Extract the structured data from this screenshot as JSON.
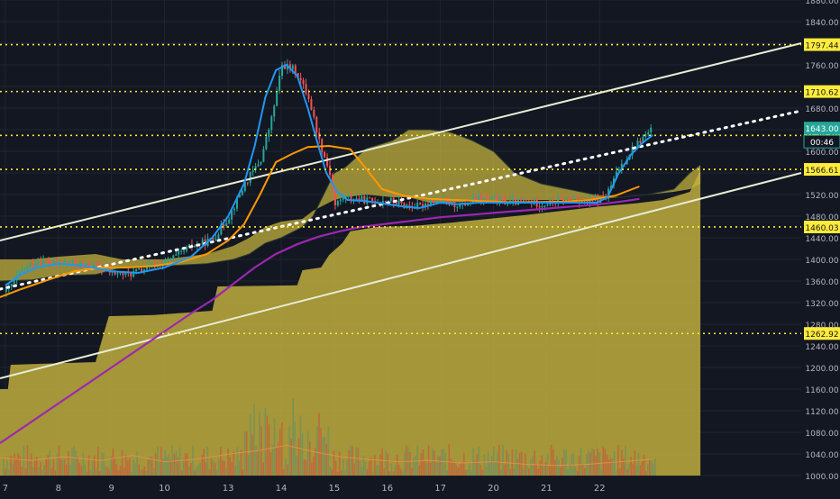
{
  "colors": {
    "background": "#131722",
    "grid": "#1f2533",
    "axis_text": "#b2b5be",
    "level_line": "#ffeb3b",
    "label_bg": "#ffeb3b",
    "label_text": "#131722",
    "price_tag_bg": "#26a69a",
    "timer_bg": "#131722",
    "ema_fast": "#2196f3",
    "ema_mid": "#ff9800",
    "ema_slow": "#9c27b0",
    "channel": "#e8ecd6",
    "cloud": "#c4b23e",
    "cloud_upper": "#b5a338",
    "band_dark": "#2a3a30",
    "candle_up": "#26a69a",
    "candle_down": "#ef5350",
    "volume_up": "#6b8f62",
    "volume_down": "#c9573b",
    "volume_avg": "#f0904a"
  },
  "chart_data": {
    "type": "candlestick",
    "title": "",
    "xlabel": "",
    "ylabel": "",
    "x_domain": [
      6.9,
      22.0
    ],
    "ylim": [
      1000,
      1880
    ],
    "y_ticks": [
      1000,
      1040,
      1080,
      1120,
      1160,
      1200,
      1240,
      1280,
      1320,
      1360,
      1400,
      1440,
      1480,
      1520,
      1560,
      1600,
      1640,
      1680,
      1720,
      1760,
      1800,
      1840,
      1880
    ],
    "x_ticks": [
      "7",
      "8",
      "9",
      "10",
      "13",
      "14",
      "15",
      "16",
      "17",
      "20",
      "21",
      "22"
    ],
    "horizontal_levels": [
      1797.44,
      1710.62,
      1629.49,
      1566.61,
      1460.03,
      1262.92
    ],
    "current_price": {
      "value": 1643.0,
      "label": "1643.00",
      "timer": "00:46"
    },
    "close_series": [
      [
        7.0,
        1340
      ],
      [
        7.3,
        1380
      ],
      [
        7.6,
        1398
      ],
      [
        7.9,
        1392
      ],
      [
        8.2,
        1395
      ],
      [
        8.5,
        1388
      ],
      [
        8.8,
        1384
      ],
      [
        9.0,
        1375
      ],
      [
        9.3,
        1372
      ],
      [
        9.6,
        1382
      ],
      [
        9.9,
        1392
      ],
      [
        10.2,
        1405
      ],
      [
        10.5,
        1425
      ],
      [
        10.7,
        1430
      ],
      [
        10.9,
        1438
      ],
      [
        11.2,
        1480
      ],
      [
        11.5,
        1540
      ],
      [
        11.8,
        1585
      ],
      [
        12.0,
        1660
      ],
      [
        12.2,
        1760
      ],
      [
        12.45,
        1750
      ],
      [
        12.7,
        1700
      ],
      [
        12.9,
        1620
      ],
      [
        13.1,
        1560
      ],
      [
        13.2,
        1500
      ],
      [
        13.35,
        1515
      ],
      [
        13.6,
        1512
      ],
      [
        13.9,
        1508
      ],
      [
        14.2,
        1510
      ],
      [
        14.5,
        1500
      ],
      [
        14.8,
        1498
      ],
      [
        15.0,
        1510
      ],
      [
        15.3,
        1505
      ],
      [
        15.6,
        1500
      ],
      [
        15.9,
        1512
      ],
      [
        16.2,
        1510
      ],
      [
        16.5,
        1505
      ],
      [
        16.8,
        1508
      ],
      [
        17.1,
        1502
      ],
      [
        17.4,
        1508
      ],
      [
        17.7,
        1512
      ],
      [
        18.0,
        1505
      ],
      [
        18.3,
        1515
      ],
      [
        18.55,
        1568
      ],
      [
        18.8,
        1605
      ],
      [
        19.0,
        1625
      ],
      [
        19.2,
        1643
      ]
    ],
    "ema_fast": [
      [
        7.0,
        1352
      ],
      [
        7.3,
        1372
      ],
      [
        7.6,
        1385
      ],
      [
        8.0,
        1392
      ],
      [
        8.5,
        1388
      ],
      [
        9.0,
        1378
      ],
      [
        9.5,
        1375
      ],
      [
        10.0,
        1385
      ],
      [
        10.5,
        1405
      ],
      [
        10.9,
        1440
      ],
      [
        11.2,
        1480
      ],
      [
        11.5,
        1540
      ],
      [
        11.7,
        1610
      ],
      [
        11.9,
        1700
      ],
      [
        12.1,
        1750
      ],
      [
        12.3,
        1760
      ],
      [
        12.5,
        1740
      ],
      [
        12.7,
        1680
      ],
      [
        12.9,
        1610
      ],
      [
        13.05,
        1560
      ],
      [
        13.25,
        1525
      ],
      [
        13.45,
        1510
      ],
      [
        13.8,
        1508
      ],
      [
        14.2,
        1502
      ],
      [
        14.5,
        1498
      ],
      [
        14.8,
        1495
      ],
      [
        15.2,
        1505
      ],
      [
        15.5,
        1502
      ],
      [
        15.9,
        1505
      ],
      [
        16.3,
        1505
      ],
      [
        16.8,
        1505
      ],
      [
        17.3,
        1505
      ],
      [
        17.8,
        1505
      ],
      [
        18.15,
        1505
      ],
      [
        18.35,
        1515
      ],
      [
        18.55,
        1558
      ],
      [
        18.8,
        1595
      ],
      [
        19.0,
        1615
      ],
      [
        19.2,
        1630
      ]
    ],
    "ema_mid": [
      [
        6.9,
        1330
      ],
      [
        7.3,
        1345
      ],
      [
        7.8,
        1362
      ],
      [
        8.3,
        1378
      ],
      [
        8.8,
        1385
      ],
      [
        9.3,
        1385
      ],
      [
        9.8,
        1388
      ],
      [
        10.3,
        1395
      ],
      [
        10.8,
        1410
      ],
      [
        11.2,
        1435
      ],
      [
        11.5,
        1465
      ],
      [
        11.8,
        1520
      ],
      [
        12.1,
        1580
      ],
      [
        12.4,
        1595
      ],
      [
        12.7,
        1608
      ],
      [
        13.1,
        1610
      ],
      [
        13.5,
        1604
      ],
      [
        13.8,
        1568
      ],
      [
        14.1,
        1530
      ],
      [
        14.5,
        1518
      ],
      [
        15.0,
        1512
      ],
      [
        15.5,
        1510
      ],
      [
        16.0,
        1508
      ],
      [
        16.5,
        1506
      ],
      [
        17.0,
        1506
      ],
      [
        17.5,
        1507
      ],
      [
        18.0,
        1510
      ],
      [
        18.5,
        1518
      ],
      [
        18.95,
        1535
      ]
    ],
    "ema_slow": [
      [
        6.9,
        1060
      ],
      [
        7.5,
        1100
      ],
      [
        8.1,
        1140
      ],
      [
        8.7,
        1180
      ],
      [
        9.3,
        1220
      ],
      [
        9.9,
        1260
      ],
      [
        10.5,
        1300
      ],
      [
        10.9,
        1325
      ],
      [
        11.3,
        1355
      ],
      [
        11.7,
        1385
      ],
      [
        12.1,
        1410
      ],
      [
        12.5,
        1428
      ],
      [
        12.9,
        1442
      ],
      [
        13.3,
        1452
      ],
      [
        13.7,
        1460
      ],
      [
        14.2,
        1466
      ],
      [
        14.7,
        1472
      ],
      [
        15.2,
        1478
      ],
      [
        15.7,
        1482
      ],
      [
        16.2,
        1486
      ],
      [
        16.7,
        1490
      ],
      [
        17.2,
        1494
      ],
      [
        17.7,
        1498
      ],
      [
        18.2,
        1502
      ],
      [
        18.6,
        1507
      ],
      [
        18.95,
        1512
      ]
    ],
    "cloud_upper": [
      [
        6.9,
        1360
      ],
      [
        7.5,
        1362
      ],
      [
        8.0,
        1370
      ],
      [
        8.7,
        1372
      ],
      [
        9.2,
        1385
      ],
      [
        10.0,
        1388
      ],
      [
        10.8,
        1392
      ],
      [
        11.3,
        1400
      ],
      [
        11.6,
        1410
      ],
      [
        11.9,
        1430
      ],
      [
        12.2,
        1440
      ],
      [
        12.6,
        1460
      ],
      [
        12.8,
        1480
      ],
      [
        13.0,
        1520
      ],
      [
        13.2,
        1560
      ],
      [
        13.4,
        1570
      ],
      [
        13.8,
        1605
      ],
      [
        14.3,
        1620
      ],
      [
        14.6,
        1640
      ],
      [
        15.0,
        1640
      ],
      [
        15.4,
        1635
      ],
      [
        15.8,
        1620
      ],
      [
        16.2,
        1600
      ],
      [
        16.6,
        1560
      ],
      [
        17.1,
        1540
      ],
      [
        17.6,
        1530
      ],
      [
        18.1,
        1520
      ],
      [
        18.6,
        1515
      ],
      [
        19.1,
        1520
      ],
      [
        19.6,
        1530
      ],
      [
        19.9,
        1560
      ],
      [
        20.1,
        1575
      ]
    ],
    "cloud_lower": [
      [
        6.9,
        1400
      ],
      [
        7.5,
        1400
      ],
      [
        8.0,
        1405
      ],
      [
        8.7,
        1410
      ],
      [
        9.2,
        1400
      ],
      [
        10.0,
        1400
      ],
      [
        10.8,
        1410
      ],
      [
        11.3,
        1425
      ],
      [
        11.6,
        1440
      ],
      [
        11.9,
        1460
      ],
      [
        12.2,
        1470
      ],
      [
        12.6,
        1475
      ],
      [
        12.8,
        1490
      ],
      [
        13.0,
        1500
      ],
      [
        13.2,
        1510
      ],
      [
        13.4,
        1515
      ],
      [
        13.8,
        1520
      ],
      [
        14.3,
        1515
      ],
      [
        14.6,
        1515
      ],
      [
        15.0,
        1505
      ],
      [
        15.4,
        1505
      ],
      [
        15.8,
        1508
      ],
      [
        16.2,
        1508
      ],
      [
        16.6,
        1510
      ],
      [
        17.1,
        1510
      ],
      [
        17.6,
        1510
      ],
      [
        18.1,
        1512
      ],
      [
        18.6,
        1515
      ],
      [
        19.1,
        1520
      ],
      [
        19.6,
        1525
      ],
      [
        19.9,
        1530
      ],
      [
        20.1,
        1540
      ]
    ],
    "baseline_area": [
      [
        6.9,
        1160
      ],
      [
        7.05,
        1160
      ],
      [
        7.1,
        1205
      ],
      [
        8.7,
        1210
      ],
      [
        8.95,
        1295
      ],
      [
        9.8,
        1297
      ],
      [
        10.9,
        1305
      ],
      [
        11.0,
        1350
      ],
      [
        12.5,
        1352
      ],
      [
        12.6,
        1380
      ],
      [
        12.95,
        1385
      ],
      [
        13.1,
        1408
      ],
      [
        13.35,
        1430
      ],
      [
        13.5,
        1452
      ],
      [
        14.0,
        1460
      ],
      [
        14.7,
        1462
      ],
      [
        15.4,
        1468
      ],
      [
        16.1,
        1475
      ],
      [
        16.8,
        1482
      ],
      [
        17.5,
        1490
      ],
      [
        18.2,
        1498
      ],
      [
        18.9,
        1504
      ],
      [
        19.4,
        1510
      ],
      [
        19.9,
        1525
      ],
      [
        20.05,
        1555
      ],
      [
        20.1,
        1565
      ]
    ],
    "channel_upper": [
      [
        6.9,
        1435
      ],
      [
        22.0,
        1800
      ]
    ],
    "channel_lower": [
      [
        6.9,
        1180
      ],
      [
        22.0,
        1560
      ]
    ],
    "channel_mid": [
      [
        6.9,
        1345
      ],
      [
        22.0,
        1675
      ]
    ],
    "volume_panel": {
      "ylim": [
        0,
        100
      ],
      "avg_line": [
        [
          6.9,
          14
        ],
        [
          7.5,
          12
        ],
        [
          8.1,
          15
        ],
        [
          8.8,
          12
        ],
        [
          9.4,
          16
        ],
        [
          10.0,
          11
        ],
        [
          10.6,
          13
        ],
        [
          11.2,
          17
        ],
        [
          11.8,
          20
        ],
        [
          12.3,
          24
        ],
        [
          12.8,
          19
        ],
        [
          13.3,
          15
        ],
        [
          13.8,
          13
        ],
        [
          14.4,
          11
        ],
        [
          15.0,
          12
        ],
        [
          15.6,
          10
        ],
        [
          16.2,
          11
        ],
        [
          16.8,
          9
        ],
        [
          17.4,
          8
        ],
        [
          18.0,
          9
        ],
        [
          18.6,
          11
        ],
        [
          19.2,
          13
        ]
      ]
    }
  }
}
